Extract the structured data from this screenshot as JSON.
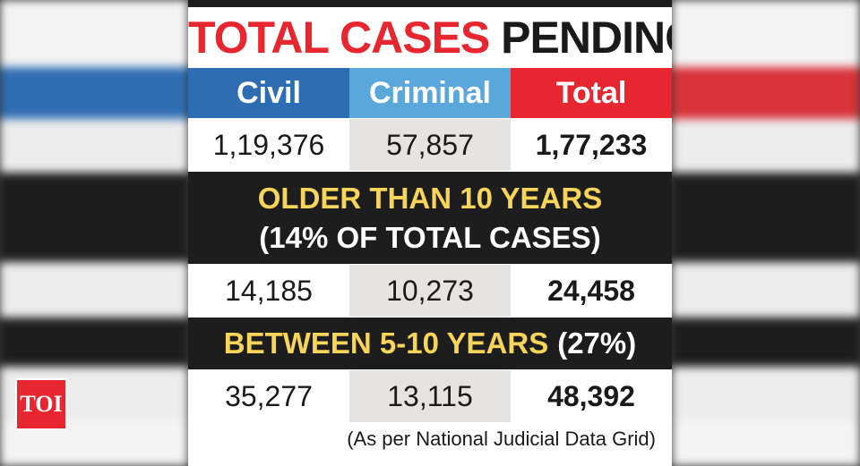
{
  "title": {
    "part1": "TOTAL CASES",
    "part2": "PENDING"
  },
  "columns": [
    "Civil",
    "Criminal",
    "Total"
  ],
  "rows": {
    "total": [
      "1,19,376",
      "57,857",
      "1,77,233"
    ],
    "older_than_10": [
      "14,185",
      "10,273",
      "24,458"
    ],
    "between_5_10": [
      "35,277",
      "13,115",
      "48,392"
    ]
  },
  "bands": {
    "older_line1": "OLDER THAN 10 YEARS",
    "older_line2": "(14% OF TOTAL CASES)",
    "between_label": "BETWEEN 5-10 YEARS",
    "between_pct": "(27%)"
  },
  "source": "(As per National Judicial Data Grid)",
  "logo": "TOI",
  "colors": {
    "red": "#e8262f",
    "blue": "#2f6db3",
    "light_blue": "#5aa7dc",
    "yellow": "#f7d55a",
    "band": "#1d1d1d"
  }
}
